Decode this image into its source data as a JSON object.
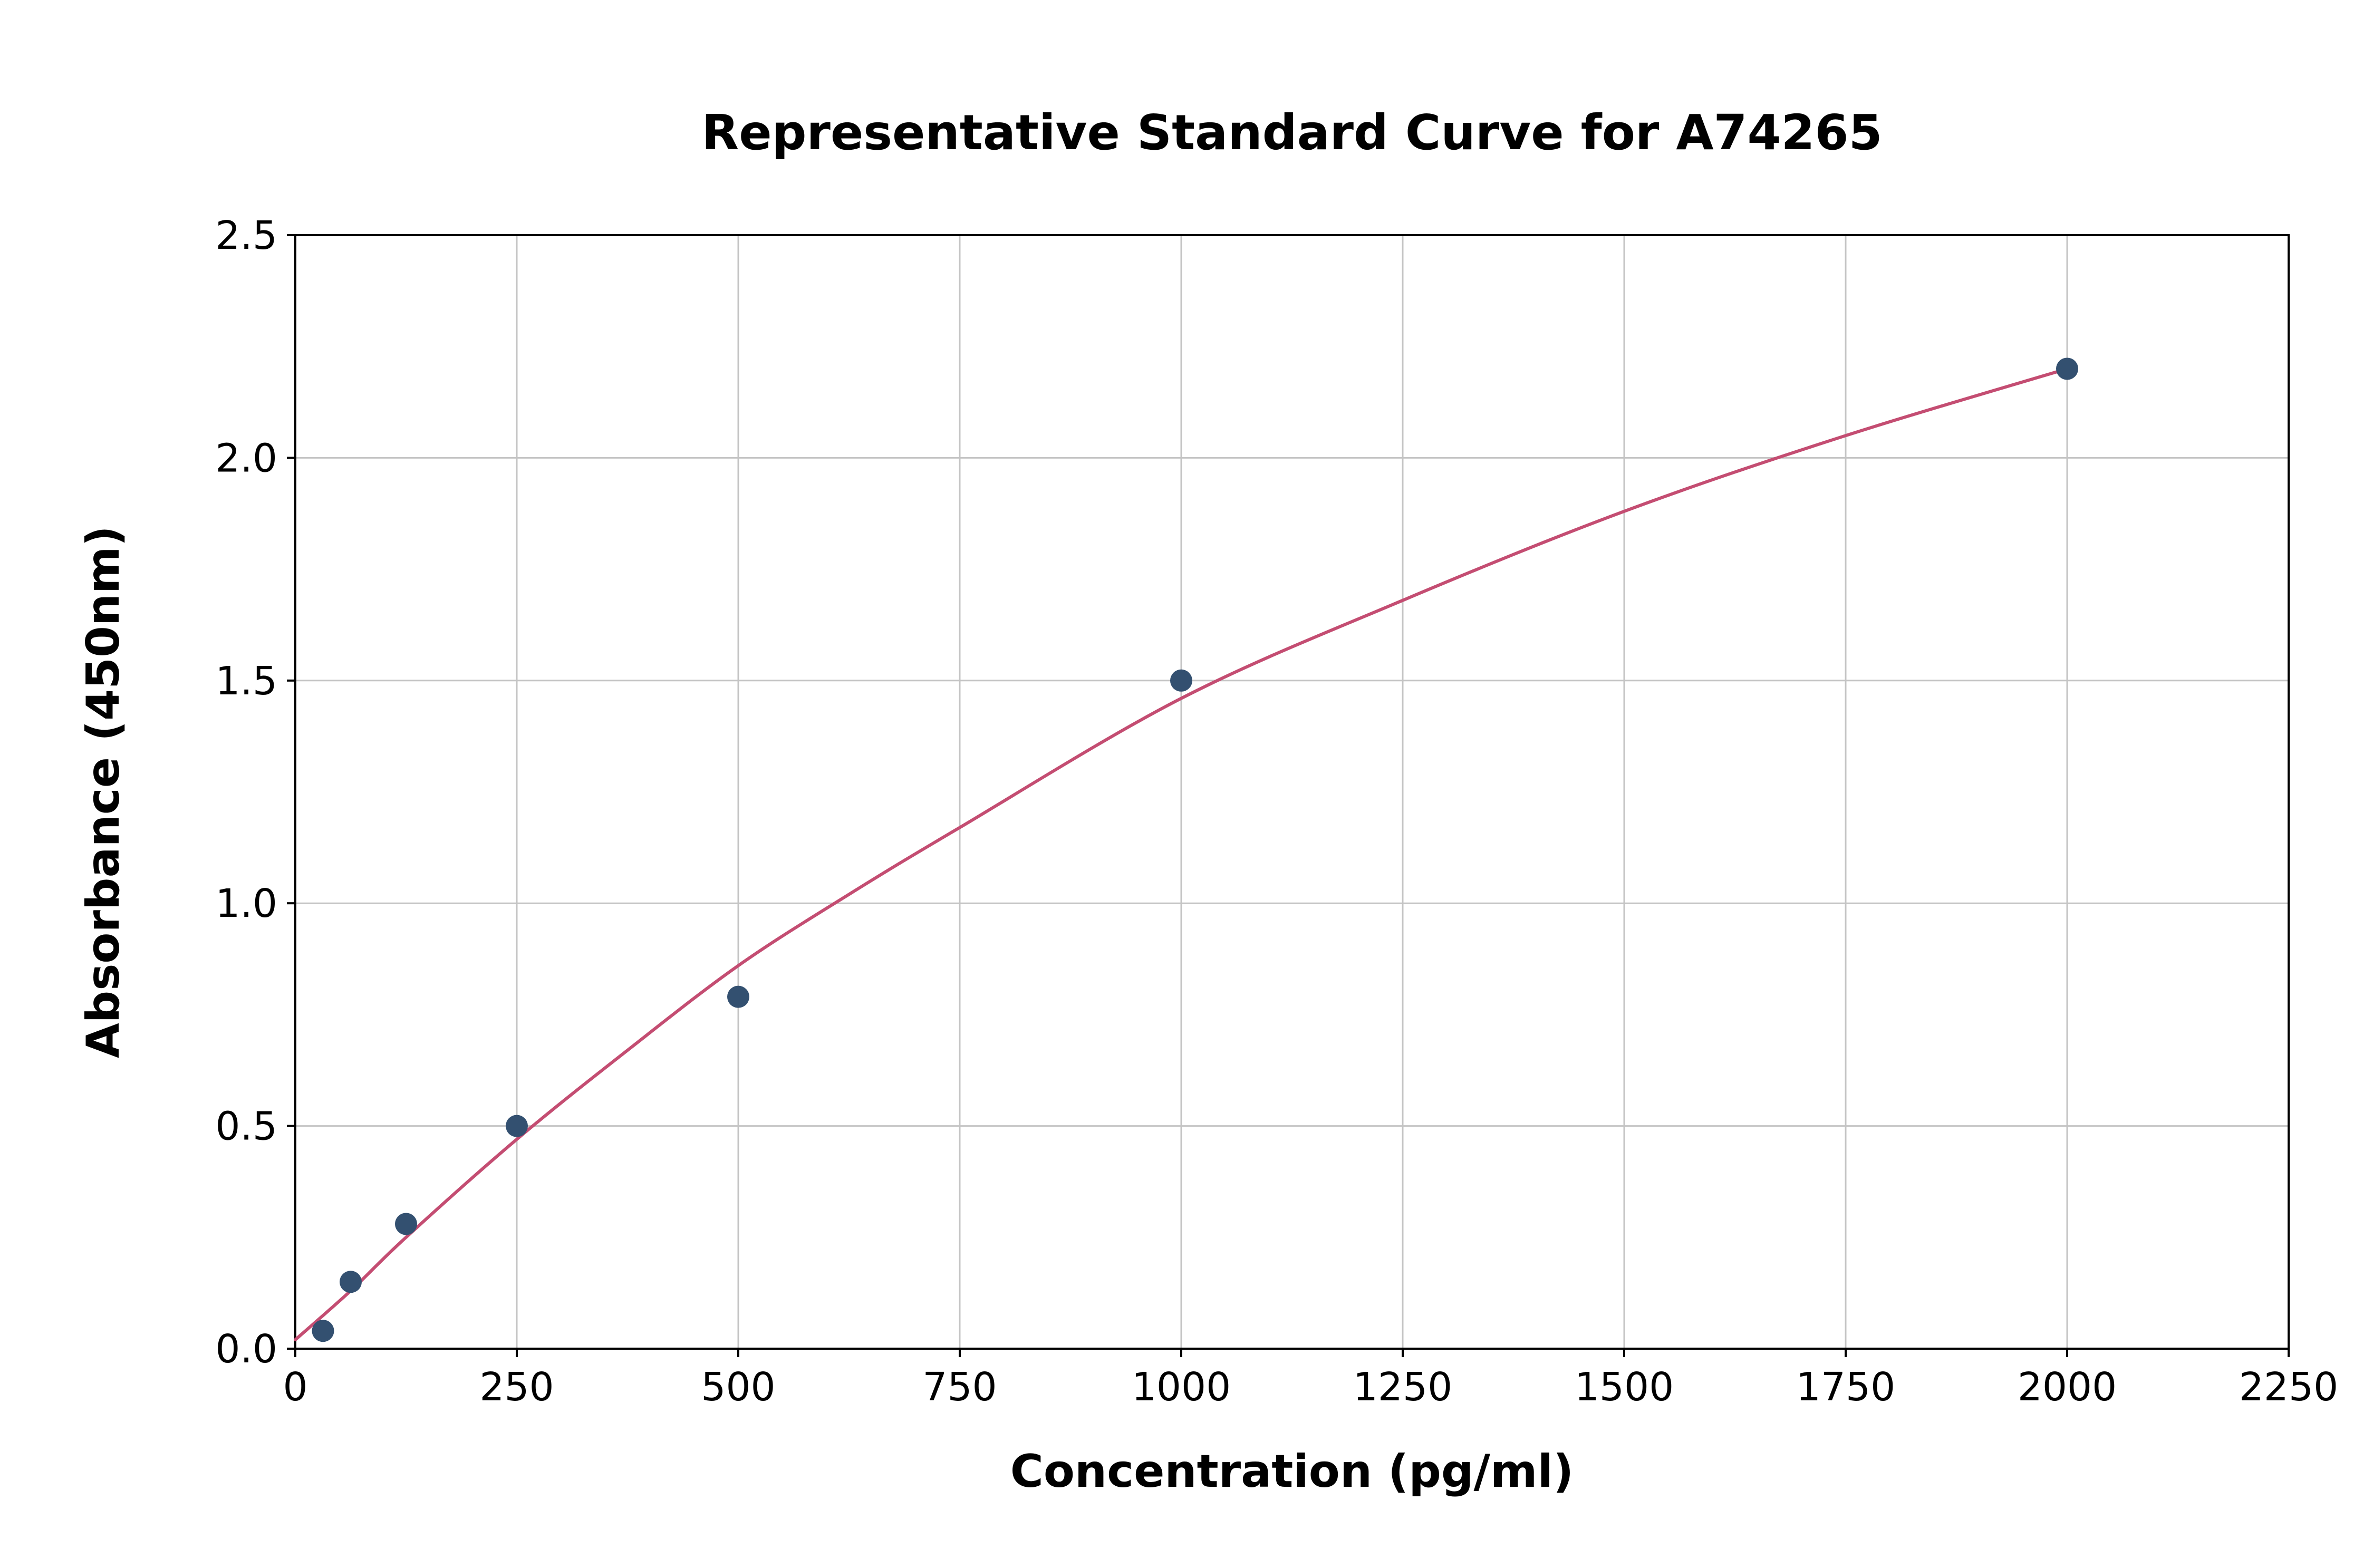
{
  "chart_data": {
    "type": "scatter",
    "title": "Representative Standard Curve for A74265",
    "xlabel": "Concentration (pg/ml)",
    "ylabel": "Absorbance (450nm)",
    "xlim": [
      0,
      2250
    ],
    "ylim": [
      0,
      2.5
    ],
    "grid": true,
    "legend": "none",
    "xticks": [
      0,
      250,
      500,
      750,
      1000,
      1250,
      1500,
      1750,
      2000,
      2250
    ],
    "xtick_labels": [
      "0",
      "250",
      "500",
      "750",
      "1000",
      "1250",
      "1500",
      "1750",
      "2000",
      "2250"
    ],
    "yticks": [
      0.0,
      0.5,
      1.0,
      1.5,
      2.0,
      2.5
    ],
    "ytick_labels": [
      "0.0",
      "0.5",
      "1.0",
      "1.5",
      "2.0",
      "2.5"
    ],
    "points": {
      "x": [
        31.25,
        62.5,
        125,
        250,
        500,
        1000,
        2000
      ],
      "y": [
        0.04,
        0.15,
        0.28,
        0.5,
        0.79,
        1.5,
        2.2
      ]
    },
    "fit_curve": {
      "x": [
        0,
        62.5,
        125,
        250,
        375,
        500,
        625,
        750,
        1000,
        1250,
        1500,
        1750,
        2000
      ],
      "y": [
        0.02,
        0.13,
        0.25,
        0.47,
        0.67,
        0.86,
        1.02,
        1.17,
        1.46,
        1.68,
        1.88,
        2.05,
        2.2
      ]
    },
    "colors": {
      "point": "#335070",
      "curve": "#c44d72",
      "grid": "#c4c4c4",
      "axis": "#000000",
      "background": "#ffffff"
    }
  }
}
